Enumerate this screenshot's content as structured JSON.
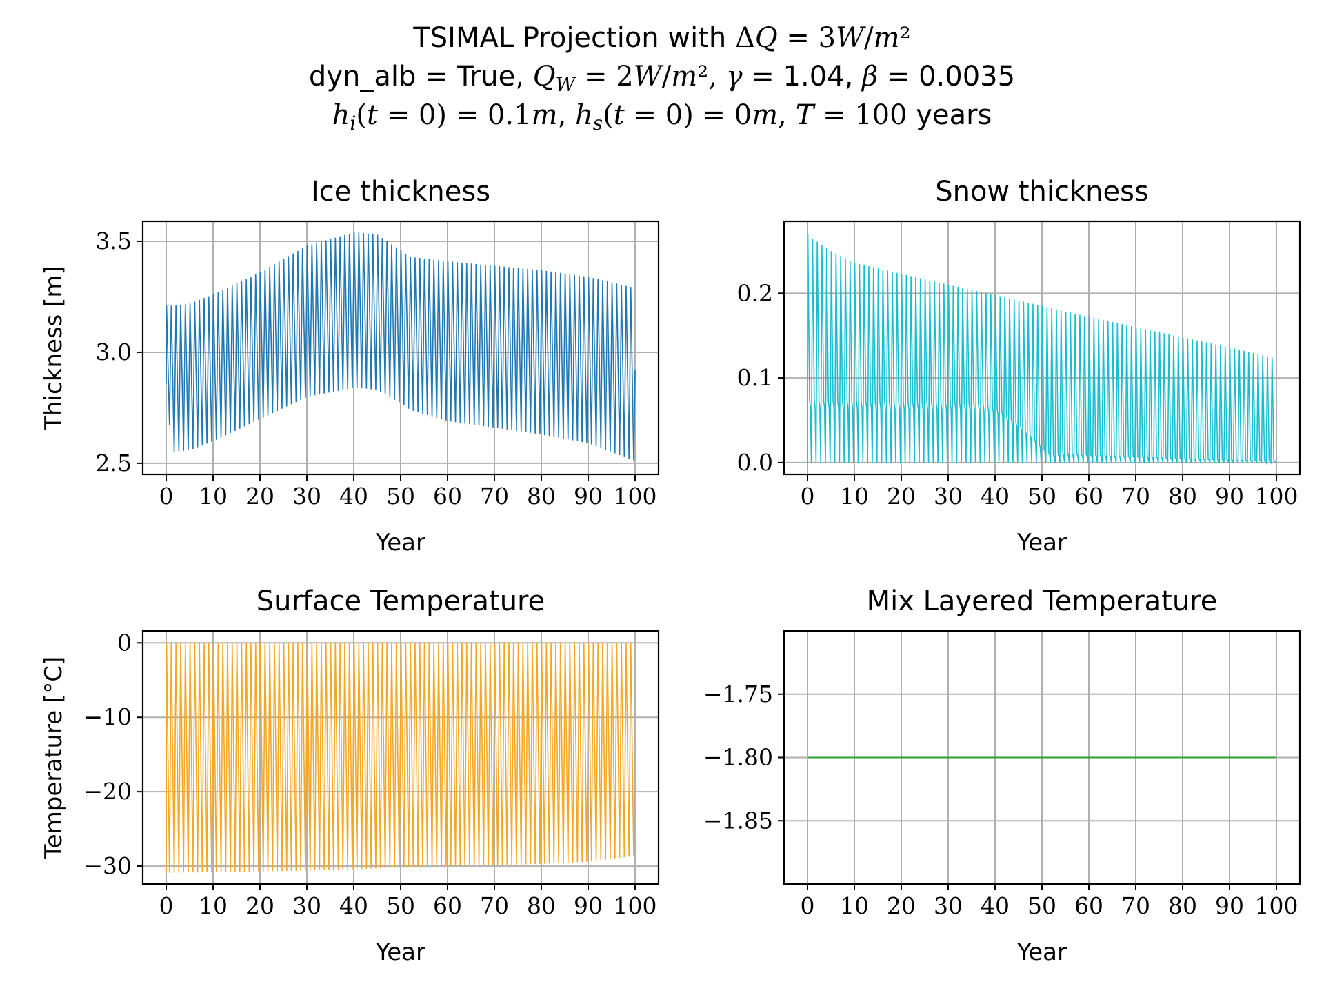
{
  "figure": {
    "title_lines": [
      "TSIMAL Projection with ΔQ = 3W/m²",
      "dyn_alb = True, Q_W = 2W/m², γ = 1.04, β = 0.0035",
      "h_i(t = 0) = 0.1m, h_s(t = 0) = 0m, T = 100 years"
    ]
  },
  "chart_data": [
    {
      "id": "ice",
      "type": "line",
      "title": "Ice thickness",
      "xlabel": "Year",
      "ylabel": "Thickness [m]",
      "xlim": [
        -5,
        105
      ],
      "ylim": [
        2.45,
        3.59
      ],
      "xticks": [
        0,
        10,
        20,
        30,
        40,
        50,
        60,
        70,
        80,
        90,
        100
      ],
      "yticks": [
        2.5,
        3.0,
        3.5
      ],
      "ytick_labels": [
        "2.5",
        "3.0",
        "3.5"
      ],
      "grid": true,
      "color": "#1f77b4",
      "series": [
        {
          "kind": "seasonal_oscillation",
          "x": [
            0,
            1,
            5,
            10,
            20,
            30,
            40,
            41,
            45,
            50,
            52,
            60,
            70,
            80,
            90,
            100
          ],
          "max": [
            3.21,
            3.21,
            3.22,
            3.26,
            3.36,
            3.48,
            3.54,
            3.54,
            3.53,
            3.46,
            3.43,
            3.41,
            3.39,
            3.37,
            3.34,
            3.29
          ],
          "min": [
            2.86,
            2.55,
            2.56,
            2.6,
            2.7,
            2.8,
            2.84,
            2.84,
            2.83,
            2.77,
            2.74,
            2.69,
            2.66,
            2.63,
            2.59,
            2.51
          ],
          "end_value": 2.92
        }
      ]
    },
    {
      "id": "snow",
      "type": "line",
      "title": "Snow thickness",
      "xlabel": "Year",
      "ylabel": "",
      "xlim": [
        -5,
        105
      ],
      "ylim": [
        -0.014,
        0.285
      ],
      "xticks": [
        0,
        10,
        20,
        30,
        40,
        50,
        60,
        70,
        80,
        90,
        100
      ],
      "yticks": [
        0.0,
        0.1,
        0.2
      ],
      "ytick_labels": [
        "0.0",
        "0.1",
        "0.2"
      ],
      "grid": true,
      "color": "#17becf",
      "series": [
        {
          "kind": "seasonal_oscillation",
          "x": [
            0,
            1,
            5,
            10,
            20,
            30,
            40,
            50,
            60,
            70,
            80,
            90,
            100
          ],
          "max": [
            0.27,
            0.265,
            0.25,
            0.236,
            0.223,
            0.21,
            0.198,
            0.185,
            0.172,
            0.16,
            0.148,
            0.136,
            0.123
          ],
          "min": [
            0,
            0,
            0,
            0,
            0,
            0,
            0,
            0,
            0,
            0,
            0,
            0,
            0
          ],
          "shoulder_x": [
            0,
            10,
            20,
            30,
            35,
            38,
            40,
            42,
            45,
            48,
            50,
            52,
            55,
            60,
            70,
            80,
            90,
            100
          ],
          "shoulder": [
            0.073,
            0.072,
            0.071,
            0.07,
            0.07,
            0.068,
            0.065,
            0.058,
            0.045,
            0.03,
            0.018,
            0.008,
            0.01,
            0.009,
            0.007,
            0.005,
            0.003,
            0.002
          ]
        }
      ]
    },
    {
      "id": "surface",
      "type": "line",
      "title": "Surface Temperature",
      "xlabel": "Year",
      "ylabel": "Temperature [°C]",
      "xlim": [
        -5,
        105
      ],
      "ylim": [
        -32.4,
        1.6
      ],
      "xticks": [
        0,
        10,
        20,
        30,
        40,
        50,
        60,
        70,
        80,
        90,
        100
      ],
      "yticks": [
        0,
        -10,
        -20,
        -30
      ],
      "ytick_labels": [
        "0",
        "−10",
        "−20",
        "−30"
      ],
      "grid": true,
      "color": "#f5a623",
      "series": [
        {
          "kind": "seasonal_oscillation",
          "x": [
            0,
            10,
            20,
            30,
            40,
            50,
            60,
            70,
            80,
            90,
            100
          ],
          "max": [
            0,
            0,
            0,
            0,
            0,
            0,
            0,
            0,
            0,
            0,
            0
          ],
          "min": [
            -30.9,
            -30.8,
            -30.7,
            -30.6,
            -30.4,
            -30.2,
            -30.0,
            -29.9,
            -29.7,
            -29.4,
            -28.6
          ]
        }
      ]
    },
    {
      "id": "mixed",
      "type": "line",
      "title": "Mix Layered Temperature",
      "xlabel": "Year",
      "ylabel": "",
      "xlim": [
        -5,
        105
      ],
      "ylim": [
        -1.9,
        -1.7
      ],
      "xticks": [
        0,
        10,
        20,
        30,
        40,
        50,
        60,
        70,
        80,
        90,
        100
      ],
      "yticks": [
        -1.75,
        -1.8,
        -1.85
      ],
      "ytick_labels": [
        "−1.75",
        "−1.80",
        "−1.85"
      ],
      "grid": true,
      "color": "#2ca02c",
      "series": [
        {
          "kind": "constant",
          "x": [
            0,
            100
          ],
          "y": [
            -1.8,
            -1.8
          ]
        }
      ]
    }
  ]
}
